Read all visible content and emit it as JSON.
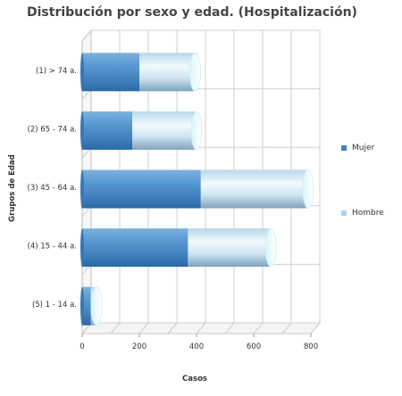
{
  "chart_data": {
    "type": "bar",
    "orientation": "horizontal",
    "stacked": true,
    "title": "Distribución por sexo y edad. (Hospitalización)",
    "xlabel": "Casos",
    "ylabel": "Grupos de Edad",
    "categories": [
      "(1) > 74 a.",
      "(2) 65 - 74 a.",
      "(3) 45 - 64 a.",
      "(4) 15 - 44 a.",
      "(5) 1 - 14 a."
    ],
    "series": [
      {
        "name": "Mujer",
        "values": [
          200,
          175,
          415,
          370,
          30
        ],
        "color": "#3f84c2"
      },
      {
        "name": "Hombre",
        "values": [
          195,
          225,
          375,
          290,
          20
        ],
        "color": "#a9d3ef"
      }
    ],
    "xlim": [
      0,
      800
    ],
    "xticks": [
      0,
      200,
      400,
      600,
      800
    ],
    "grid": true,
    "legend_position": "right"
  }
}
